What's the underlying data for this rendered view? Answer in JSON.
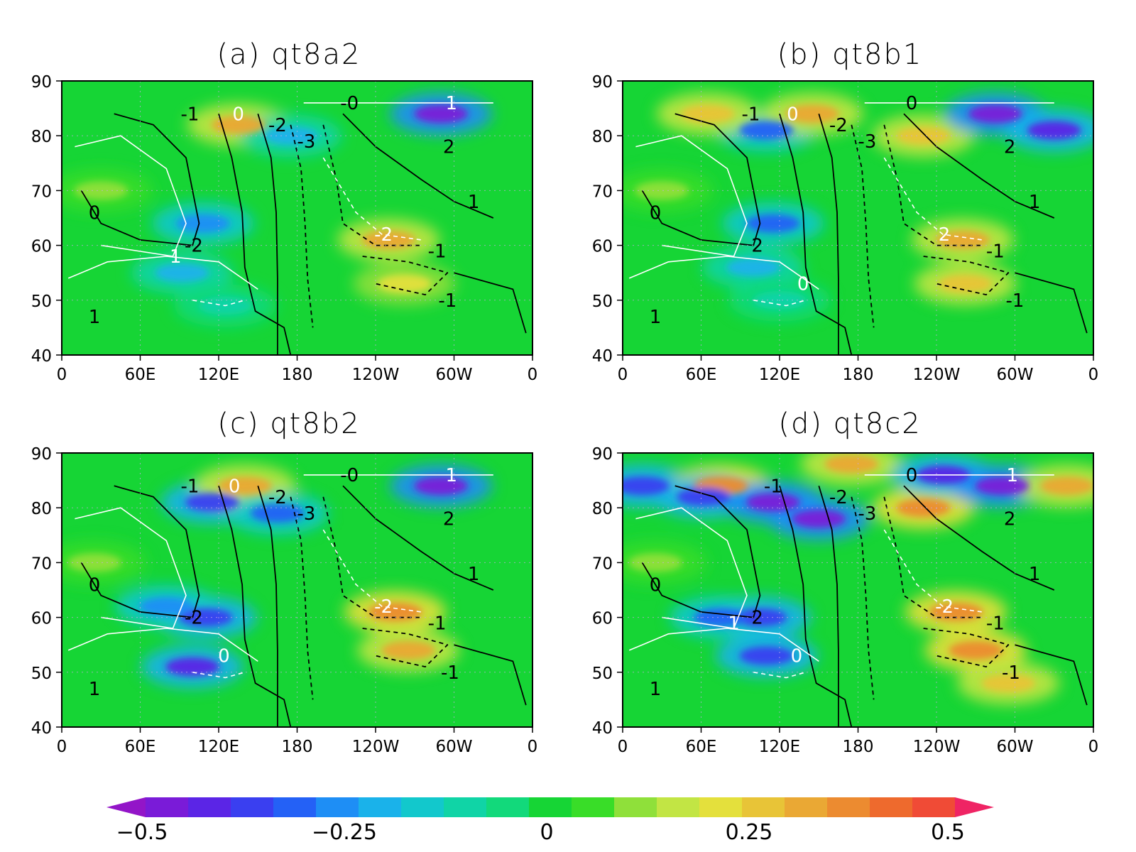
{
  "chart_data": [
    {
      "type": "heatmap",
      "title": "(a) qt8a2",
      "x_ticks": [
        "0",
        "60E",
        "120E",
        "180",
        "120W",
        "60W",
        "0"
      ],
      "y_ticks": [
        "40",
        "50",
        "60",
        "70",
        "80",
        "90"
      ],
      "xlim": [
        0,
        360
      ],
      "ylim": [
        40,
        90
      ],
      "features": [
        {
          "lon": 108,
          "lat": 64,
          "value": -0.27
        },
        {
          "lon": 92,
          "lat": 55,
          "value": -0.2
        },
        {
          "lon": 125,
          "lat": 49,
          "value": -0.12
        },
        {
          "lon": 135,
          "lat": 82,
          "value": 0.3
        },
        {
          "lon": 175,
          "lat": 80,
          "value": -0.2
        },
        {
          "lon": 250,
          "lat": 61,
          "value": 0.3
        },
        {
          "lon": 262,
          "lat": 53,
          "value": 0.2
        },
        {
          "lon": 290,
          "lat": 84,
          "value": -0.45
        },
        {
          "lon": 30,
          "lat": 70,
          "value": 0.1
        }
      ],
      "contour_labels": [
        {
          "text": "-1",
          "lon": 98,
          "lat": 84,
          "color": "black"
        },
        {
          "text": "0",
          "lon": 135,
          "lat": 84,
          "color": "white"
        },
        {
          "text": "-2",
          "lon": 165,
          "lat": 82,
          "color": "black"
        },
        {
          "text": "-3",
          "lon": 187,
          "lat": 79,
          "color": "black"
        },
        {
          "text": "-0",
          "lon": 220,
          "lat": 86,
          "color": "black"
        },
        {
          "text": "1",
          "lon": 298,
          "lat": 86,
          "color": "white"
        },
        {
          "text": "2",
          "lon": 296,
          "lat": 78,
          "color": "black"
        },
        {
          "text": "1",
          "lon": 315,
          "lat": 68,
          "color": "black"
        },
        {
          "text": "0",
          "lon": 25,
          "lat": 66,
          "color": "black"
        },
        {
          "text": "-2",
          "lon": 101,
          "lat": 60,
          "color": "black"
        },
        {
          "text": "1",
          "lon": 87,
          "lat": 58,
          "color": "white"
        },
        {
          "text": "-2",
          "lon": 246,
          "lat": 62,
          "color": "white"
        },
        {
          "text": "-1",
          "lon": 287,
          "lat": 59,
          "color": "black"
        },
        {
          "text": "-1",
          "lon": 295,
          "lat": 50,
          "color": "black"
        },
        {
          "text": "1",
          "lon": 25,
          "lat": 47,
          "color": "black"
        }
      ]
    },
    {
      "type": "heatmap",
      "title": "(b) qt8b1",
      "x_ticks": [
        "0",
        "60E",
        "120E",
        "180",
        "120W",
        "60W",
        "0"
      ],
      "y_ticks": [
        "40",
        "50",
        "60",
        "70",
        "80",
        "90"
      ],
      "xlim": [
        0,
        360
      ],
      "ylim": [
        40,
        90
      ],
      "features": [
        {
          "lon": 115,
          "lat": 64,
          "value": -0.3
        },
        {
          "lon": 100,
          "lat": 56,
          "value": -0.2
        },
        {
          "lon": 120,
          "lat": 50,
          "value": -0.12
        },
        {
          "lon": 110,
          "lat": 81,
          "value": -0.3
        },
        {
          "lon": 145,
          "lat": 84,
          "value": 0.3
        },
        {
          "lon": 65,
          "lat": 84,
          "value": 0.25
        },
        {
          "lon": 230,
          "lat": 80,
          "value": 0.25
        },
        {
          "lon": 285,
          "lat": 84,
          "value": -0.45
        },
        {
          "lon": 330,
          "lat": 81,
          "value": -0.4
        },
        {
          "lon": 260,
          "lat": 61,
          "value": 0.3
        },
        {
          "lon": 262,
          "lat": 53,
          "value": 0.25
        },
        {
          "lon": 30,
          "lat": 70,
          "value": 0.1
        }
      ],
      "contour_labels": [
        {
          "text": "-1",
          "lon": 98,
          "lat": 84,
          "color": "black"
        },
        {
          "text": "0",
          "lon": 130,
          "lat": 84,
          "color": "white"
        },
        {
          "text": "-2",
          "lon": 165,
          "lat": 82,
          "color": "black"
        },
        {
          "text": "-3",
          "lon": 187,
          "lat": 79,
          "color": "black"
        },
        {
          "text": "0",
          "lon": 221,
          "lat": 86,
          "color": "black"
        },
        {
          "text": "2",
          "lon": 296,
          "lat": 78,
          "color": "black"
        },
        {
          "text": "1",
          "lon": 315,
          "lat": 68,
          "color": "black"
        },
        {
          "text": "0",
          "lon": 25,
          "lat": 66,
          "color": "black"
        },
        {
          "text": "2",
          "lon": 103,
          "lat": 60,
          "color": "black"
        },
        {
          "text": "0",
          "lon": 138,
          "lat": 53,
          "color": "white"
        },
        {
          "text": "2",
          "lon": 246,
          "lat": 62,
          "color": "white"
        },
        {
          "text": "-1",
          "lon": 285,
          "lat": 59,
          "color": "black"
        },
        {
          "text": "-1",
          "lon": 300,
          "lat": 50,
          "color": "black"
        },
        {
          "text": "1",
          "lon": 25,
          "lat": 47,
          "color": "black"
        }
      ]
    },
    {
      "type": "heatmap",
      "title": "(c) qt8b2",
      "x_ticks": [
        "0",
        "60E",
        "120E",
        "180",
        "120W",
        "60W",
        "0"
      ],
      "y_ticks": [
        "40",
        "50",
        "60",
        "70",
        "80",
        "90"
      ],
      "xlim": [
        0,
        360
      ],
      "ylim": [
        40,
        90
      ],
      "features": [
        {
          "lon": 110,
          "lat": 60,
          "value": -0.35
        },
        {
          "lon": 100,
          "lat": 51,
          "value": -0.4
        },
        {
          "lon": 80,
          "lat": 62,
          "value": -0.25
        },
        {
          "lon": 115,
          "lat": 81,
          "value": -0.35
        },
        {
          "lon": 140,
          "lat": 84,
          "value": 0.3
        },
        {
          "lon": 165,
          "lat": 79,
          "value": -0.3
        },
        {
          "lon": 290,
          "lat": 84,
          "value": -0.45
        },
        {
          "lon": 255,
          "lat": 61,
          "value": 0.33
        },
        {
          "lon": 265,
          "lat": 54,
          "value": 0.3
        },
        {
          "lon": 25,
          "lat": 70,
          "value": 0.1
        }
      ],
      "contour_labels": [
        {
          "text": "-1",
          "lon": 98,
          "lat": 84,
          "color": "black"
        },
        {
          "text": "0",
          "lon": 132,
          "lat": 84,
          "color": "white"
        },
        {
          "text": "-2",
          "lon": 165,
          "lat": 82,
          "color": "black"
        },
        {
          "text": "-3",
          "lon": 187,
          "lat": 79,
          "color": "black"
        },
        {
          "text": "-0",
          "lon": 220,
          "lat": 86,
          "color": "black"
        },
        {
          "text": "1",
          "lon": 298,
          "lat": 86,
          "color": "white"
        },
        {
          "text": "2",
          "lon": 296,
          "lat": 78,
          "color": "black"
        },
        {
          "text": "1",
          "lon": 315,
          "lat": 68,
          "color": "black"
        },
        {
          "text": "0",
          "lon": 25,
          "lat": 66,
          "color": "black"
        },
        {
          "text": "-2",
          "lon": 101,
          "lat": 60,
          "color": "black"
        },
        {
          "text": "0",
          "lon": 124,
          "lat": 53,
          "color": "white"
        },
        {
          "text": "-2",
          "lon": 246,
          "lat": 62,
          "color": "white"
        },
        {
          "text": "-1",
          "lon": 287,
          "lat": 59,
          "color": "black"
        },
        {
          "text": "-1",
          "lon": 297,
          "lat": 50,
          "color": "black"
        },
        {
          "text": "1",
          "lon": 25,
          "lat": 47,
          "color": "black"
        }
      ]
    },
    {
      "type": "heatmap",
      "title": "(d) qt8c2",
      "x_ticks": [
        "0",
        "60E",
        "120E",
        "180",
        "120W",
        "60W",
        "0"
      ],
      "y_ticks": [
        "40",
        "50",
        "60",
        "70",
        "80",
        "90"
      ],
      "xlim": [
        0,
        360
      ],
      "ylim": [
        40,
        90
      ],
      "features": [
        {
          "lon": 105,
          "lat": 60,
          "value": -0.35
        },
        {
          "lon": 75,
          "lat": 60,
          "value": -0.3
        },
        {
          "lon": 110,
          "lat": 53,
          "value": -0.35
        },
        {
          "lon": 15,
          "lat": 84,
          "value": -0.35
        },
        {
          "lon": 75,
          "lat": 84,
          "value": 0.35
        },
        {
          "lon": 62,
          "lat": 82,
          "value": -0.35
        },
        {
          "lon": 115,
          "lat": 81,
          "value": -0.45
        },
        {
          "lon": 150,
          "lat": 78,
          "value": -0.45
        },
        {
          "lon": 175,
          "lat": 88,
          "value": 0.3
        },
        {
          "lon": 230,
          "lat": 80,
          "value": 0.35
        },
        {
          "lon": 245,
          "lat": 86,
          "value": -0.4
        },
        {
          "lon": 290,
          "lat": 84,
          "value": -0.45
        },
        {
          "lon": 340,
          "lat": 84,
          "value": 0.3
        },
        {
          "lon": 255,
          "lat": 61,
          "value": 0.35
        },
        {
          "lon": 270,
          "lat": 54,
          "value": 0.35
        },
        {
          "lon": 295,
          "lat": 48,
          "value": 0.25
        },
        {
          "lon": 25,
          "lat": 70,
          "value": 0.12
        }
      ],
      "contour_labels": [
        {
          "text": "-1",
          "lon": 115,
          "lat": 84,
          "color": "black"
        },
        {
          "text": "-2",
          "lon": 165,
          "lat": 82,
          "color": "black"
        },
        {
          "text": "-3",
          "lon": 187,
          "lat": 79,
          "color": "black"
        },
        {
          "text": "0",
          "lon": 221,
          "lat": 86,
          "color": "black"
        },
        {
          "text": "1",
          "lon": 298,
          "lat": 86,
          "color": "white"
        },
        {
          "text": "2",
          "lon": 296,
          "lat": 78,
          "color": "black"
        },
        {
          "text": "1",
          "lon": 315,
          "lat": 68,
          "color": "black"
        },
        {
          "text": "0",
          "lon": 25,
          "lat": 66,
          "color": "black"
        },
        {
          "text": "1",
          "lon": 85,
          "lat": 59,
          "color": "white"
        },
        {
          "text": "2",
          "lon": 103,
          "lat": 60,
          "color": "black"
        },
        {
          "text": "0",
          "lon": 133,
          "lat": 53,
          "color": "white"
        },
        {
          "text": "-2",
          "lon": 246,
          "lat": 62,
          "color": "white"
        },
        {
          "text": "-1",
          "lon": 285,
          "lat": 59,
          "color": "black"
        },
        {
          "text": "-1",
          "lon": 297,
          "lat": 50,
          "color": "black"
        },
        {
          "text": "1",
          "lon": 25,
          "lat": 47,
          "color": "black"
        }
      ]
    }
  ],
  "colorbar": {
    "min": -0.5,
    "max": 0.5,
    "tick_labels": [
      "−0.5",
      "−0.25",
      "0",
      "0.25",
      "0.5"
    ],
    "colors": [
      "#9315c8",
      "#7a1bd8",
      "#5b25e6",
      "#3a3ff0",
      "#2461f6",
      "#1e8ef5",
      "#1ab2ea",
      "#12c8cc",
      "#10d4a6",
      "#12d97b",
      "#16d535",
      "#39dd28",
      "#8fe03a",
      "#c2e544",
      "#e4e03c",
      "#e8c437",
      "#eaa834",
      "#ec8b30",
      "#ee6a2d",
      "#f04b36",
      "#ef2464"
    ]
  }
}
